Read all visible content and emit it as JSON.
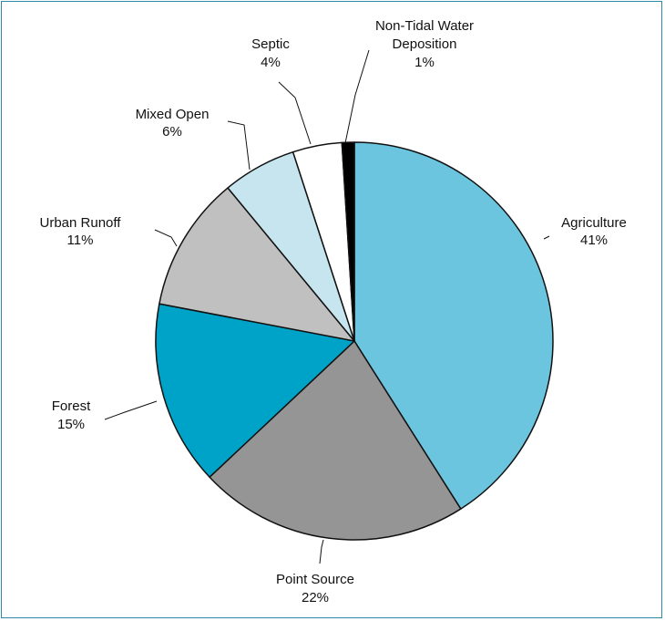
{
  "chart_data": {
    "type": "pie",
    "title": "",
    "start": "top, clockwise",
    "slices": [
      {
        "name": "Agriculture",
        "value": 41,
        "pct": "41%",
        "color": "#6cc5df"
      },
      {
        "name": "Point Source",
        "value": 22,
        "pct": "22%",
        "color": "#959595"
      },
      {
        "name": "Forest",
        "value": 15,
        "pct": "15%",
        "color": "#00a3c8"
      },
      {
        "name": "Urban Runoff",
        "value": 11,
        "pct": "11%",
        "color": "#c0c0c0"
      },
      {
        "name": "Mixed Open",
        "value": 6,
        "pct": "6%",
        "color": "#c7e5ef"
      },
      {
        "name": "Septic",
        "value": 4,
        "pct": "4%",
        "color": "#ffffff"
      },
      {
        "name": "Non-Tidal Water Deposition",
        "name_lines": [
          "Non-Tidal Water",
          "Deposition"
        ],
        "value": 1,
        "pct": "1%",
        "color": "#000000"
      }
    ]
  },
  "colors": {
    "border": "#2f86a8",
    "outline": "#111111"
  }
}
